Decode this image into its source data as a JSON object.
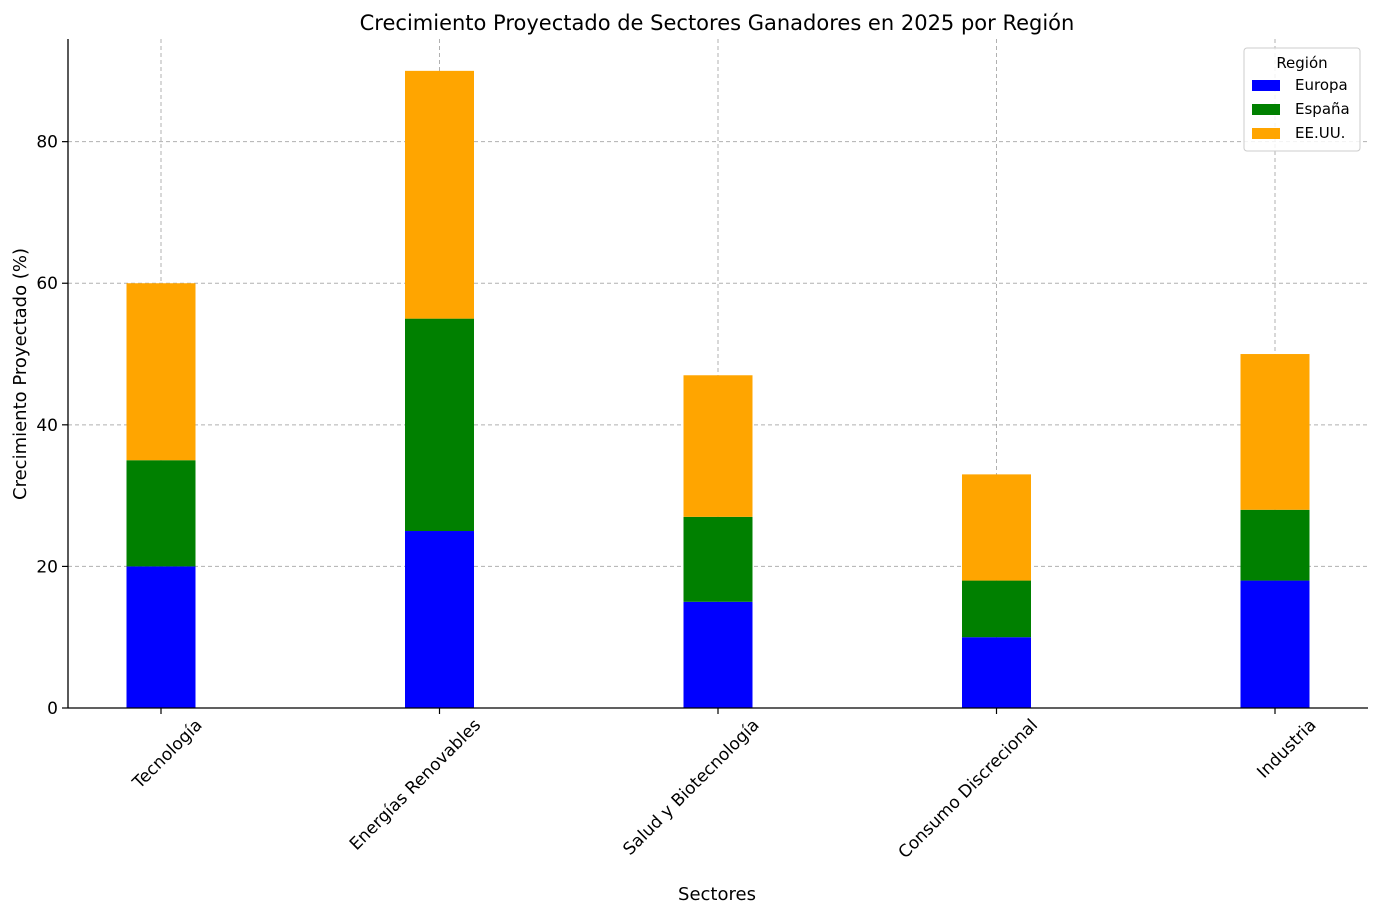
{
  "chart_data": {
    "type": "bar",
    "stacked": true,
    "title": "Crecimiento Proyectado de Sectores Ganadores en 2025 por Región",
    "xlabel": "Sectores",
    "ylabel": "Crecimiento Proyectado (%)",
    "categories": [
      "Tecnología",
      "Energías Renovables",
      "Salud y Biotecnología",
      "Consumo Discrecional",
      "Industria"
    ],
    "series": [
      {
        "name": "Europa",
        "color": "#0000ff",
        "values": [
          20,
          25,
          15,
          10,
          18
        ]
      },
      {
        "name": "España",
        "color": "#008000",
        "values": [
          15,
          30,
          12,
          8,
          10
        ]
      },
      {
        "name": "EE.UU.",
        "color": "#ffa500",
        "values": [
          25,
          35,
          20,
          15,
          22
        ]
      }
    ],
    "ylim": [
      0,
      94.5
    ],
    "yticks": [
      0,
      20,
      40,
      60,
      80
    ],
    "grid": true,
    "legend": {
      "title": "Región",
      "position": "top-right"
    }
  }
}
